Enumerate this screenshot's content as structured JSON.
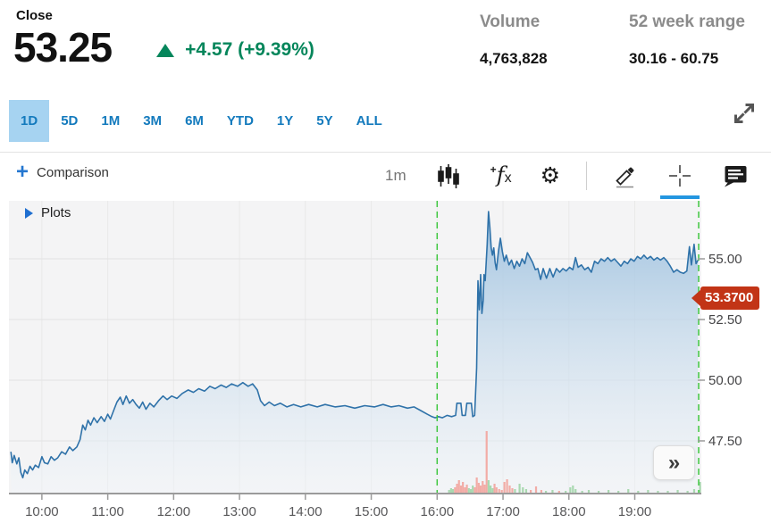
{
  "header": {
    "close_label": "Close",
    "price": "53.25",
    "change_text": "+4.57 (+9.39%)",
    "change_color": "#05865b",
    "volume_label": "Volume",
    "volume_value": "4,763,828",
    "range_label": "52 week range",
    "range_value": "30.16 - 60.75"
  },
  "range_tabs": {
    "items": [
      {
        "label": "1D",
        "selected": true
      },
      {
        "label": "5D",
        "selected": false
      },
      {
        "label": "1M",
        "selected": false
      },
      {
        "label": "3M",
        "selected": false
      },
      {
        "label": "6M",
        "selected": false
      },
      {
        "label": "YTD",
        "selected": false
      },
      {
        "label": "1Y",
        "selected": false
      },
      {
        "label": "5Y",
        "selected": false
      },
      {
        "label": "ALL",
        "selected": false
      }
    ],
    "selected_bg": "#a6d3f1",
    "text_color": "#137abd"
  },
  "toolbar": {
    "plus_glyph": "+",
    "comparison_label": "Comparison",
    "interval_label": "1m",
    "active_tool": "crosshair",
    "active_underline_color": "#2496e0"
  },
  "plots_label": "Plots",
  "collapse_button_glyph": "»",
  "chart_data": {
    "type": "area",
    "title": "Intraday price (1D, 1m interval)",
    "x_axis": {
      "domain": [
        9.5,
        20.01
      ],
      "ticks": [
        {
          "t": 10,
          "label": "10:00"
        },
        {
          "t": 11,
          "label": "11:00"
        },
        {
          "t": 12,
          "label": "12:00"
        },
        {
          "t": 13,
          "label": "13:00"
        },
        {
          "t": 14,
          "label": "14:00"
        },
        {
          "t": 15,
          "label": "15:00"
        },
        {
          "t": 16,
          "label": "16:00"
        },
        {
          "t": 17,
          "label": "17:00"
        },
        {
          "t": 18,
          "label": "18:00"
        },
        {
          "t": 19,
          "label": "19:00"
        }
      ]
    },
    "y_axis": {
      "domain": [
        45.33,
        57.39
      ],
      "ticks": [
        {
          "value": 55.0,
          "label": "55.00"
        },
        {
          "value": 52.5,
          "label": "52.50"
        },
        {
          "value": 50.0,
          "label": "50.00"
        },
        {
          "value": 47.5,
          "label": "47.50"
        }
      ]
    },
    "session_markers": [
      16.0,
      19.97
    ],
    "last_price": {
      "value": 53.37,
      "label": "53.3700"
    },
    "colors": {
      "line": "#2f72a9",
      "fill_top": "#9cc0de",
      "fill_bottom": "#f2f6fa",
      "plot_bg": "#f4f4f5",
      "grid_v": "#e9e9e9",
      "grid_h": "#e2e2e3",
      "axis": "#9b9b9b",
      "x_label": "#58585a",
      "y_label": "#454547",
      "marker_green": "#3fc73f",
      "vol_up": "#a9d8b0",
      "vol_down": "#f2aca6",
      "tag_bg": "#c23416"
    },
    "series": [
      {
        "name": "price",
        "points": [
          [
            9.53,
            47.05
          ],
          [
            9.55,
            46.6
          ],
          [
            9.58,
            46.9
          ],
          [
            9.62,
            46.55
          ],
          [
            9.65,
            46.8
          ],
          [
            9.68,
            46.2
          ],
          [
            9.71,
            45.98
          ],
          [
            9.74,
            46.3
          ],
          [
            9.78,
            46.15
          ],
          [
            9.82,
            46.45
          ],
          [
            9.86,
            46.3
          ],
          [
            9.9,
            46.5
          ],
          [
            9.95,
            46.4
          ],
          [
            10.0,
            46.85
          ],
          [
            10.04,
            46.6
          ],
          [
            10.09,
            46.55
          ],
          [
            10.14,
            46.85
          ],
          [
            10.19,
            46.7
          ],
          [
            10.24,
            46.8
          ],
          [
            10.3,
            47.05
          ],
          [
            10.36,
            46.95
          ],
          [
            10.42,
            47.25
          ],
          [
            10.47,
            47.1
          ],
          [
            10.53,
            47.25
          ],
          [
            10.58,
            47.55
          ],
          [
            10.62,
            48.15
          ],
          [
            10.66,
            47.95
          ],
          [
            10.7,
            48.35
          ],
          [
            10.74,
            48.15
          ],
          [
            10.79,
            48.45
          ],
          [
            10.84,
            48.25
          ],
          [
            10.9,
            48.5
          ],
          [
            10.95,
            48.3
          ],
          [
            11.0,
            48.6
          ],
          [
            11.04,
            48.4
          ],
          [
            11.09,
            48.75
          ],
          [
            11.14,
            49.1
          ],
          [
            11.19,
            49.3
          ],
          [
            11.23,
            49.0
          ],
          [
            11.28,
            49.35
          ],
          [
            11.33,
            49.05
          ],
          [
            11.38,
            49.2
          ],
          [
            11.43,
            49.0
          ],
          [
            11.48,
            48.85
          ],
          [
            11.53,
            49.1
          ],
          [
            11.58,
            48.8
          ],
          [
            11.64,
            49.05
          ],
          [
            11.7,
            48.9
          ],
          [
            11.77,
            49.15
          ],
          [
            11.84,
            49.35
          ],
          [
            11.9,
            49.2
          ],
          [
            11.97,
            49.35
          ],
          [
            12.05,
            49.25
          ],
          [
            12.13,
            49.45
          ],
          [
            12.22,
            49.6
          ],
          [
            12.3,
            49.5
          ],
          [
            12.38,
            49.65
          ],
          [
            12.47,
            49.55
          ],
          [
            12.55,
            49.75
          ],
          [
            12.63,
            49.65
          ],
          [
            12.72,
            49.8
          ],
          [
            12.8,
            49.7
          ],
          [
            12.88,
            49.85
          ],
          [
            12.97,
            49.75
          ],
          [
            13.05,
            49.9
          ],
          [
            13.13,
            49.75
          ],
          [
            13.2,
            49.85
          ],
          [
            13.27,
            49.6
          ],
          [
            13.32,
            49.15
          ],
          [
            13.38,
            48.95
          ],
          [
            13.45,
            49.1
          ],
          [
            13.53,
            48.95
          ],
          [
            13.62,
            49.05
          ],
          [
            13.72,
            48.9
          ],
          [
            13.82,
            49.0
          ],
          [
            13.93,
            48.9
          ],
          [
            14.05,
            49.0
          ],
          [
            14.18,
            48.9
          ],
          [
            14.3,
            49.0
          ],
          [
            14.45,
            48.9
          ],
          [
            14.6,
            48.95
          ],
          [
            14.75,
            48.85
          ],
          [
            14.9,
            48.95
          ],
          [
            15.05,
            48.9
          ],
          [
            15.18,
            49.0
          ],
          [
            15.3,
            48.9
          ],
          [
            15.42,
            48.95
          ],
          [
            15.55,
            48.85
          ],
          [
            15.65,
            48.9
          ],
          [
            15.75,
            48.75
          ],
          [
            15.85,
            48.6
          ],
          [
            15.92,
            48.5
          ],
          [
            15.97,
            48.45
          ],
          [
            16.02,
            48.5
          ],
          [
            16.08,
            48.45
          ],
          [
            16.15,
            48.55
          ],
          [
            16.22,
            48.5
          ],
          [
            16.28,
            48.55
          ],
          [
            16.3,
            49.05
          ],
          [
            16.36,
            49.05
          ],
          [
            16.38,
            48.55
          ],
          [
            16.43,
            48.55
          ],
          [
            16.45,
            49.05
          ],
          [
            16.52,
            49.05
          ],
          [
            16.54,
            48.5
          ],
          [
            16.57,
            48.55
          ],
          [
            16.6,
            50.5
          ],
          [
            16.61,
            52.4
          ],
          [
            16.62,
            54.1
          ],
          [
            16.64,
            52.9
          ],
          [
            16.66,
            54.35
          ],
          [
            16.68,
            52.75
          ],
          [
            16.7,
            53.3
          ],
          [
            16.71,
            54.35
          ],
          [
            16.73,
            54.1
          ],
          [
            16.76,
            55.6
          ],
          [
            16.78,
            56.95
          ],
          [
            16.8,
            56.3
          ],
          [
            16.82,
            55.45
          ],
          [
            16.84,
            55.15
          ],
          [
            16.86,
            55.45
          ],
          [
            16.88,
            54.85
          ],
          [
            16.9,
            54.55
          ],
          [
            16.93,
            55.3
          ],
          [
            16.96,
            55.85
          ],
          [
            16.99,
            55.3
          ],
          [
            17.02,
            54.9
          ],
          [
            17.05,
            55.15
          ],
          [
            17.09,
            54.75
          ],
          [
            17.13,
            54.95
          ],
          [
            17.17,
            54.6
          ],
          [
            17.21,
            54.9
          ],
          [
            17.25,
            54.7
          ],
          [
            17.29,
            55.0
          ],
          [
            17.33,
            54.8
          ],
          [
            17.37,
            55.25
          ],
          [
            17.41,
            55.05
          ],
          [
            17.45,
            54.85
          ],
          [
            17.49,
            54.55
          ],
          [
            17.53,
            54.6
          ],
          [
            17.57,
            54.15
          ],
          [
            17.61,
            54.6
          ],
          [
            17.66,
            54.2
          ],
          [
            17.71,
            54.6
          ],
          [
            17.76,
            54.25
          ],
          [
            17.81,
            54.6
          ],
          [
            17.86,
            54.45
          ],
          [
            17.91,
            54.6
          ],
          [
            17.96,
            54.5
          ],
          [
            18.01,
            54.65
          ],
          [
            18.06,
            54.55
          ],
          [
            18.1,
            55.05
          ],
          [
            18.14,
            54.65
          ],
          [
            18.19,
            54.75
          ],
          [
            18.24,
            54.55
          ],
          [
            18.29,
            54.65
          ],
          [
            18.34,
            54.45
          ],
          [
            18.39,
            54.9
          ],
          [
            18.44,
            54.8
          ],
          [
            18.49,
            55.0
          ],
          [
            18.54,
            54.9
          ],
          [
            18.59,
            55.05
          ],
          [
            18.64,
            54.9
          ],
          [
            18.69,
            55.0
          ],
          [
            18.74,
            54.85
          ],
          [
            18.79,
            54.7
          ],
          [
            18.84,
            54.9
          ],
          [
            18.89,
            54.8
          ],
          [
            18.94,
            55.0
          ],
          [
            18.99,
            54.9
          ],
          [
            19.04,
            55.1
          ],
          [
            19.09,
            55.0
          ],
          [
            19.14,
            55.15
          ],
          [
            19.19,
            55.0
          ],
          [
            19.24,
            55.1
          ],
          [
            19.29,
            54.95
          ],
          [
            19.34,
            55.05
          ],
          [
            19.39,
            54.95
          ],
          [
            19.44,
            55.05
          ],
          [
            19.49,
            54.9
          ],
          [
            19.54,
            54.7
          ],
          [
            19.59,
            54.45
          ],
          [
            19.64,
            54.55
          ],
          [
            19.69,
            54.45
          ],
          [
            19.74,
            54.4
          ],
          [
            19.79,
            54.5
          ],
          [
            19.83,
            55.5
          ],
          [
            19.86,
            54.75
          ],
          [
            19.9,
            55.6
          ],
          [
            19.93,
            54.8
          ],
          [
            19.96,
            54.95
          ]
        ]
      }
    ],
    "volume_bars": [
      [
        16.18,
        4,
        "g"
      ],
      [
        16.21,
        6,
        "g"
      ],
      [
        16.24,
        5,
        "g"
      ],
      [
        16.27,
        7,
        "r"
      ],
      [
        16.3,
        11,
        "r"
      ],
      [
        16.33,
        15,
        "r"
      ],
      [
        16.36,
        9,
        "r"
      ],
      [
        16.39,
        13,
        "r"
      ],
      [
        16.42,
        7,
        "r"
      ],
      [
        16.45,
        10,
        "r"
      ],
      [
        16.48,
        6,
        "g"
      ],
      [
        16.51,
        5,
        "g"
      ],
      [
        16.54,
        9,
        "g"
      ],
      [
        16.57,
        7,
        "r"
      ],
      [
        16.6,
        18,
        "r"
      ],
      [
        16.63,
        12,
        "r"
      ],
      [
        16.66,
        9,
        "r"
      ],
      [
        16.69,
        14,
        "r"
      ],
      [
        16.72,
        10,
        "r"
      ],
      [
        16.75,
        70,
        "r"
      ],
      [
        16.78,
        15,
        "g"
      ],
      [
        16.81,
        9,
        "g"
      ],
      [
        16.84,
        6,
        "g"
      ],
      [
        16.87,
        11,
        "r"
      ],
      [
        16.9,
        7,
        "r"
      ],
      [
        16.94,
        5,
        "r"
      ],
      [
        16.98,
        4,
        "r"
      ],
      [
        17.02,
        13,
        "r"
      ],
      [
        17.06,
        16,
        "r"
      ],
      [
        17.1,
        9,
        "r"
      ],
      [
        17.14,
        6,
        "r"
      ],
      [
        17.18,
        5,
        "g"
      ],
      [
        17.25,
        11,
        "g"
      ],
      [
        17.3,
        7,
        "g"
      ],
      [
        17.35,
        5,
        "g"
      ],
      [
        17.42,
        4,
        "r"
      ],
      [
        17.5,
        8,
        "r"
      ],
      [
        17.58,
        4,
        "r"
      ],
      [
        17.65,
        3,
        "g"
      ],
      [
        17.75,
        4,
        "g"
      ],
      [
        17.85,
        3,
        "r"
      ],
      [
        17.95,
        3,
        "g"
      ],
      [
        18.02,
        7,
        "g"
      ],
      [
        18.06,
        9,
        "g"
      ],
      [
        18.1,
        5,
        "g"
      ],
      [
        18.2,
        3,
        "g"
      ],
      [
        18.3,
        4,
        "g"
      ],
      [
        18.45,
        3,
        "g"
      ],
      [
        18.6,
        4,
        "g"
      ],
      [
        18.75,
        3,
        "g"
      ],
      [
        18.9,
        5,
        "g"
      ],
      [
        19.05,
        3,
        "g"
      ],
      [
        19.2,
        4,
        "g"
      ],
      [
        19.35,
        3,
        "g"
      ],
      [
        19.5,
        3,
        "g"
      ],
      [
        19.65,
        4,
        "g"
      ],
      [
        19.8,
        3,
        "g"
      ],
      [
        19.9,
        5,
        "g"
      ],
      [
        19.99,
        13,
        "g"
      ]
    ]
  }
}
